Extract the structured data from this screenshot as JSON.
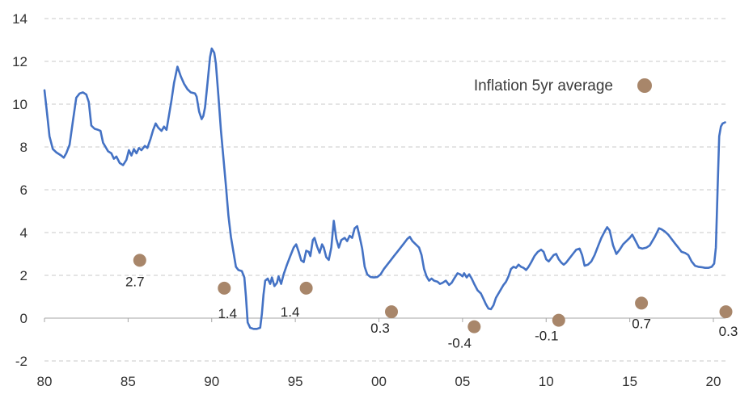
{
  "legend": {
    "label": "Inflation 5yr average",
    "marker_color": "#A8866A"
  },
  "colors": {
    "line": "#4472C4",
    "scatter": "#A8866A",
    "gridline": "#C9C9C9",
    "axis": "#A6A6A6",
    "text": "#333333"
  },
  "chart_data": {
    "type": "line",
    "title": "",
    "xlabel": "",
    "ylabel": "",
    "grid": "horizontal-dashed",
    "legend_position": "top-right-inside",
    "x_axis": {
      "tick_labels": [
        "80",
        "85",
        "90",
        "95",
        "00",
        "05",
        "10",
        "15",
        "20"
      ],
      "tick_years": [
        1980,
        1985,
        1990,
        1995,
        2000,
        2005,
        2010,
        2015,
        2020
      ],
      "range": [
        1980,
        2020.73
      ]
    },
    "y_axis": {
      "ticks": [
        14,
        12,
        10,
        8,
        6,
        4,
        2,
        0,
        -2
      ],
      "range": [
        -2,
        14
      ]
    },
    "series": [
      {
        "name": "Inflation",
        "type": "line",
        "color": "#4472C4",
        "points": [
          [
            1980.0,
            10.65
          ],
          [
            1980.15,
            9.6
          ],
          [
            1980.3,
            8.5
          ],
          [
            1980.5,
            7.9
          ],
          [
            1980.7,
            7.75
          ],
          [
            1981.0,
            7.6
          ],
          [
            1981.15,
            7.5
          ],
          [
            1981.3,
            7.7
          ],
          [
            1981.5,
            8.1
          ],
          [
            1981.7,
            9.2
          ],
          [
            1981.9,
            10.3
          ],
          [
            1982.1,
            10.5
          ],
          [
            1982.3,
            10.55
          ],
          [
            1982.5,
            10.45
          ],
          [
            1982.65,
            10.1
          ],
          [
            1982.8,
            9.0
          ],
          [
            1983.0,
            8.85
          ],
          [
            1983.2,
            8.8
          ],
          [
            1983.35,
            8.75
          ],
          [
            1983.5,
            8.2
          ],
          [
            1983.65,
            8.0
          ],
          [
            1983.8,
            7.8
          ],
          [
            1984.0,
            7.7
          ],
          [
            1984.15,
            7.45
          ],
          [
            1984.3,
            7.55
          ],
          [
            1984.5,
            7.25
          ],
          [
            1984.7,
            7.15
          ],
          [
            1984.9,
            7.4
          ],
          [
            1985.05,
            7.85
          ],
          [
            1985.2,
            7.6
          ],
          [
            1985.35,
            7.9
          ],
          [
            1985.5,
            7.7
          ],
          [
            1985.65,
            7.95
          ],
          [
            1985.8,
            7.85
          ],
          [
            1986.0,
            8.05
          ],
          [
            1986.15,
            7.95
          ],
          [
            1986.35,
            8.4
          ],
          [
            1986.5,
            8.8
          ],
          [
            1986.65,
            9.1
          ],
          [
            1986.8,
            8.9
          ],
          [
            1987.0,
            8.75
          ],
          [
            1987.15,
            8.95
          ],
          [
            1987.3,
            8.8
          ],
          [
            1987.45,
            9.5
          ],
          [
            1987.6,
            10.2
          ],
          [
            1987.75,
            11.0
          ],
          [
            1987.95,
            11.75
          ],
          [
            1988.15,
            11.3
          ],
          [
            1988.35,
            10.95
          ],
          [
            1988.55,
            10.7
          ],
          [
            1988.75,
            10.55
          ],
          [
            1989.0,
            10.5
          ],
          [
            1989.1,
            10.35
          ],
          [
            1989.25,
            9.65
          ],
          [
            1989.4,
            9.3
          ],
          [
            1989.5,
            9.45
          ],
          [
            1989.6,
            9.85
          ],
          [
            1989.75,
            11.0
          ],
          [
            1989.9,
            12.2
          ],
          [
            1990.0,
            12.6
          ],
          [
            1990.15,
            12.4
          ],
          [
            1990.25,
            11.9
          ],
          [
            1990.4,
            10.4
          ],
          [
            1990.55,
            8.8
          ],
          [
            1990.7,
            7.5
          ],
          [
            1990.85,
            6.2
          ],
          [
            1991.0,
            4.8
          ],
          [
            1991.15,
            3.8
          ],
          [
            1991.3,
            3.1
          ],
          [
            1991.45,
            2.4
          ],
          [
            1991.6,
            2.25
          ],
          [
            1991.8,
            2.2
          ],
          [
            1991.95,
            1.9
          ],
          [
            1992.05,
            1.0
          ],
          [
            1992.15,
            -0.2
          ],
          [
            1992.3,
            -0.45
          ],
          [
            1992.5,
            -0.5
          ],
          [
            1992.7,
            -0.5
          ],
          [
            1992.9,
            -0.45
          ],
          [
            1993.0,
            0.2
          ],
          [
            1993.1,
            1.1
          ],
          [
            1993.2,
            1.75
          ],
          [
            1993.35,
            1.85
          ],
          [
            1993.5,
            1.6
          ],
          [
            1993.6,
            1.9
          ],
          [
            1993.75,
            1.5
          ],
          [
            1993.9,
            1.65
          ],
          [
            1994.0,
            1.95
          ],
          [
            1994.15,
            1.6
          ],
          [
            1994.3,
            2.05
          ],
          [
            1994.5,
            2.5
          ],
          [
            1994.7,
            2.9
          ],
          [
            1994.9,
            3.3
          ],
          [
            1995.05,
            3.45
          ],
          [
            1995.2,
            3.1
          ],
          [
            1995.35,
            2.7
          ],
          [
            1995.5,
            2.62
          ],
          [
            1995.65,
            3.15
          ],
          [
            1995.8,
            3.1
          ],
          [
            1995.9,
            2.9
          ],
          [
            1996.05,
            3.65
          ],
          [
            1996.15,
            3.75
          ],
          [
            1996.3,
            3.35
          ],
          [
            1996.45,
            3.05
          ],
          [
            1996.6,
            3.45
          ],
          [
            1996.7,
            3.3
          ],
          [
            1996.85,
            2.85
          ],
          [
            1997.0,
            2.72
          ],
          [
            1997.15,
            3.3
          ],
          [
            1997.3,
            4.55
          ],
          [
            1997.45,
            3.7
          ],
          [
            1997.6,
            3.3
          ],
          [
            1997.75,
            3.65
          ],
          [
            1997.95,
            3.75
          ],
          [
            1998.1,
            3.6
          ],
          [
            1998.25,
            3.85
          ],
          [
            1998.4,
            3.75
          ],
          [
            1998.55,
            4.2
          ],
          [
            1998.7,
            4.3
          ],
          [
            1998.85,
            3.8
          ],
          [
            1999.0,
            3.25
          ],
          [
            1999.15,
            2.4
          ],
          [
            1999.3,
            2.05
          ],
          [
            1999.5,
            1.92
          ],
          [
            1999.7,
            1.9
          ],
          [
            1999.9,
            1.92
          ],
          [
            2000.1,
            2.05
          ],
          [
            2000.3,
            2.3
          ],
          [
            2000.5,
            2.5
          ],
          [
            2000.7,
            2.7
          ],
          [
            2000.9,
            2.9
          ],
          [
            2001.1,
            3.1
          ],
          [
            2001.3,
            3.3
          ],
          [
            2001.5,
            3.5
          ],
          [
            2001.7,
            3.7
          ],
          [
            2001.85,
            3.8
          ],
          [
            2002.0,
            3.6
          ],
          [
            2002.2,
            3.45
          ],
          [
            2002.4,
            3.3
          ],
          [
            2002.55,
            2.95
          ],
          [
            2002.7,
            2.3
          ],
          [
            2002.85,
            1.95
          ],
          [
            2003.0,
            1.75
          ],
          [
            2003.15,
            1.85
          ],
          [
            2003.3,
            1.75
          ],
          [
            2003.5,
            1.7
          ],
          [
            2003.65,
            1.6
          ],
          [
            2003.8,
            1.65
          ],
          [
            2004.0,
            1.75
          ],
          [
            2004.2,
            1.55
          ],
          [
            2004.35,
            1.65
          ],
          [
            2004.5,
            1.85
          ],
          [
            2004.7,
            2.1
          ],
          [
            2004.85,
            2.05
          ],
          [
            2005.0,
            1.95
          ],
          [
            2005.1,
            2.1
          ],
          [
            2005.25,
            1.9
          ],
          [
            2005.4,
            2.05
          ],
          [
            2005.55,
            1.85
          ],
          [
            2005.7,
            1.6
          ],
          [
            2005.9,
            1.3
          ],
          [
            2006.1,
            1.15
          ],
          [
            2006.25,
            0.9
          ],
          [
            2006.4,
            0.65
          ],
          [
            2006.55,
            0.45
          ],
          [
            2006.7,
            0.42
          ],
          [
            2006.85,
            0.6
          ],
          [
            2007.0,
            0.95
          ],
          [
            2007.15,
            1.15
          ],
          [
            2007.3,
            1.35
          ],
          [
            2007.45,
            1.55
          ],
          [
            2007.6,
            1.7
          ],
          [
            2007.75,
            1.95
          ],
          [
            2007.9,
            2.3
          ],
          [
            2008.05,
            2.4
          ],
          [
            2008.2,
            2.35
          ],
          [
            2008.35,
            2.5
          ],
          [
            2008.5,
            2.4
          ],
          [
            2008.65,
            2.35
          ],
          [
            2008.8,
            2.25
          ],
          [
            2008.95,
            2.4
          ],
          [
            2009.1,
            2.6
          ],
          [
            2009.3,
            2.9
          ],
          [
            2009.5,
            3.1
          ],
          [
            2009.7,
            3.2
          ],
          [
            2009.85,
            3.1
          ],
          [
            2010.0,
            2.75
          ],
          [
            2010.15,
            2.65
          ],
          [
            2010.3,
            2.8
          ],
          [
            2010.45,
            2.95
          ],
          [
            2010.6,
            3.0
          ],
          [
            2010.75,
            2.75
          ],
          [
            2010.9,
            2.6
          ],
          [
            2011.05,
            2.5
          ],
          [
            2011.2,
            2.6
          ],
          [
            2011.4,
            2.8
          ],
          [
            2011.6,
            3.0
          ],
          [
            2011.8,
            3.2
          ],
          [
            2012.0,
            3.25
          ],
          [
            2012.15,
            2.95
          ],
          [
            2012.3,
            2.45
          ],
          [
            2012.5,
            2.5
          ],
          [
            2012.7,
            2.65
          ],
          [
            2012.9,
            2.95
          ],
          [
            2013.1,
            3.35
          ],
          [
            2013.3,
            3.75
          ],
          [
            2013.5,
            4.05
          ],
          [
            2013.65,
            4.25
          ],
          [
            2013.8,
            4.1
          ],
          [
            2014.0,
            3.4
          ],
          [
            2014.2,
            3.0
          ],
          [
            2014.4,
            3.2
          ],
          [
            2014.6,
            3.45
          ],
          [
            2014.8,
            3.6
          ],
          [
            2015.0,
            3.75
          ],
          [
            2015.15,
            3.9
          ],
          [
            2015.35,
            3.6
          ],
          [
            2015.55,
            3.3
          ],
          [
            2015.75,
            3.25
          ],
          [
            2016.0,
            3.3
          ],
          [
            2016.2,
            3.4
          ],
          [
            2016.5,
            3.8
          ],
          [
            2016.75,
            4.2
          ],
          [
            2016.9,
            4.15
          ],
          [
            2017.1,
            4.05
          ],
          [
            2017.3,
            3.9
          ],
          [
            2017.5,
            3.7
          ],
          [
            2017.7,
            3.5
          ],
          [
            2017.9,
            3.3
          ],
          [
            2018.1,
            3.1
          ],
          [
            2018.3,
            3.05
          ],
          [
            2018.5,
            2.95
          ],
          [
            2018.7,
            2.65
          ],
          [
            2018.9,
            2.45
          ],
          [
            2019.1,
            2.4
          ],
          [
            2019.3,
            2.38
          ],
          [
            2019.5,
            2.35
          ],
          [
            2019.7,
            2.35
          ],
          [
            2019.9,
            2.4
          ],
          [
            2020.05,
            2.55
          ],
          [
            2020.15,
            3.3
          ],
          [
            2020.25,
            6.0
          ],
          [
            2020.35,
            8.5
          ],
          [
            2020.45,
            8.95
          ],
          [
            2020.55,
            9.1
          ],
          [
            2020.7,
            9.15
          ]
        ]
      },
      {
        "name": "Inflation 5yr average",
        "type": "scatter",
        "color": "#A8866A",
        "radius": 8,
        "points": [
          {
            "x": 1985.7,
            "y": 2.7,
            "label": "2.7",
            "label_dx": -6,
            "label_dy": 32
          },
          {
            "x": 1990.75,
            "y": 1.4,
            "label": "1.4",
            "label_dx": 4,
            "label_dy": 37
          },
          {
            "x": 1995.65,
            "y": 1.4,
            "label": "1.4",
            "label_dx": -20,
            "label_dy": 35
          },
          {
            "x": 2000.75,
            "y": 0.3,
            "label": "0.3",
            "label_dx": -14,
            "label_dy": 26
          },
          {
            "x": 2005.7,
            "y": -0.4,
            "label": "-0.4",
            "label_dx": -18,
            "label_dy": 26
          },
          {
            "x": 2010.75,
            "y": -0.1,
            "label": "-0.1",
            "label_dx": -15,
            "label_dy": 25
          },
          {
            "x": 2015.7,
            "y": 0.7,
            "label": "0.7",
            "label_dx": 0,
            "label_dy": 31
          },
          {
            "x": 2020.75,
            "y": 0.3,
            "label": "0.3",
            "label_dx": 3,
            "label_dy": 30
          }
        ]
      }
    ]
  }
}
